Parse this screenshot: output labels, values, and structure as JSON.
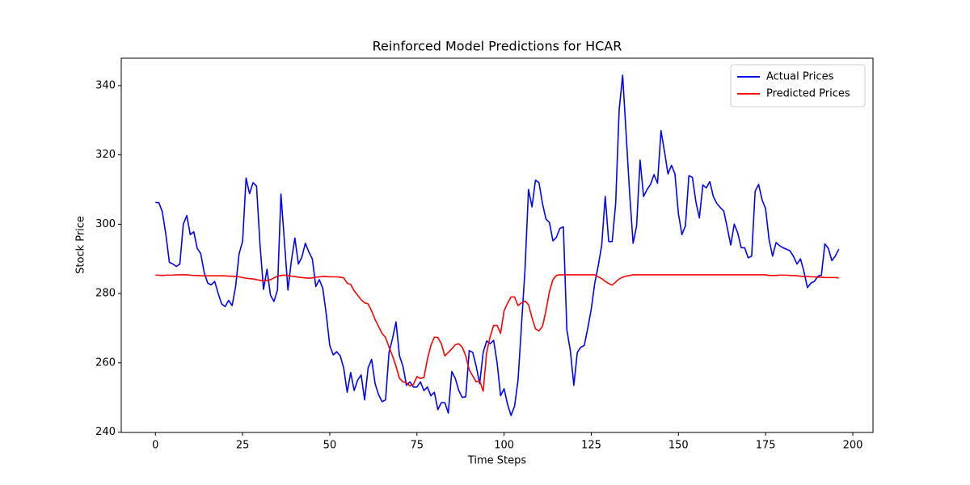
{
  "chart_data": {
    "type": "line",
    "title": "Reinforced Model Predictions for HCAR",
    "x_label": "Time Steps",
    "y_label": "Stock Price",
    "x": [
      0,
      1,
      2,
      3,
      4,
      5,
      6,
      7,
      8,
      9,
      10,
      11,
      12,
      13,
      14,
      15,
      16,
      17,
      18,
      19,
      20,
      21,
      22,
      23,
      24,
      25,
      26,
      27,
      28,
      29,
      30,
      31,
      32,
      33,
      34,
      35,
      36,
      37,
      38,
      39,
      40,
      41,
      42,
      43,
      44,
      45,
      46,
      47,
      48,
      49,
      50,
      51,
      52,
      53,
      54,
      55,
      56,
      57,
      58,
      59,
      60,
      61,
      62,
      63,
      64,
      65,
      66,
      67,
      68,
      69,
      70,
      71,
      72,
      73,
      74,
      75,
      76,
      77,
      78,
      79,
      80,
      81,
      82,
      83,
      84,
      85,
      86,
      87,
      88,
      89,
      90,
      91,
      92,
      93,
      94,
      95,
      96,
      97,
      98,
      99,
      100,
      101,
      102,
      103,
      104,
      105,
      106,
      107,
      108,
      109,
      110,
      111,
      112,
      113,
      114,
      115,
      116,
      117,
      118,
      119,
      120,
      121,
      122,
      123,
      124,
      125,
      126,
      127,
      128,
      129,
      130,
      131,
      132,
      133,
      134,
      135,
      136,
      137,
      138,
      139,
      140,
      141,
      142,
      143,
      144,
      145,
      146,
      147,
      148,
      149,
      150,
      151,
      152,
      153,
      154,
      155,
      156,
      157,
      158,
      159,
      160,
      161,
      162,
      163,
      164,
      165,
      166,
      167,
      168,
      169,
      170,
      171,
      172,
      173,
      174,
      175,
      176,
      177,
      178,
      179,
      180,
      181,
      182,
      183,
      184,
      185,
      186,
      187,
      188,
      189,
      190,
      191,
      192,
      193,
      194,
      195,
      196
    ],
    "series": [
      {
        "name": "Actual Prices",
        "color": "#0000ff",
        "values": [
          306.3,
          306.2,
          303.5,
          297,
          289,
          288.5,
          287.8,
          288.5,
          300,
          302.5,
          297,
          297.8,
          293,
          291.5,
          286,
          283,
          282.5,
          283.5,
          280,
          277,
          276.2,
          278,
          276.5,
          282,
          291.5,
          295,
          313.3,
          308.8,
          312,
          311,
          294,
          281.2,
          287,
          279.5,
          277.7,
          281,
          308.7,
          295,
          281,
          289.5,
          296,
          288.5,
          290.5,
          294.5,
          292,
          290,
          282,
          284,
          281.5,
          274,
          265,
          262.3,
          263.2,
          262,
          258.5,
          251.5,
          257.2,
          252,
          255,
          256.5,
          249.3,
          258.5,
          261,
          254,
          250.8,
          248.8,
          249.3,
          263,
          267,
          271.8,
          262,
          259,
          253.5,
          254.5,
          253,
          253,
          254.5,
          252,
          253,
          250.5,
          251.5,
          246.5,
          248.5,
          248.5,
          245.5,
          257.5,
          255.5,
          252,
          250,
          250.2,
          263.5,
          263,
          259,
          254,
          263,
          266.3,
          265.5,
          266.5,
          260,
          250.5,
          252.5,
          248,
          244.8,
          247.5,
          255,
          271,
          287,
          310,
          305,
          312.7,
          312,
          306,
          301.5,
          300.5,
          295.2,
          296.2,
          298.8,
          299.2,
          269.5,
          263.5,
          253.5,
          263,
          264.5,
          265,
          270,
          275.5,
          283,
          288,
          294,
          308,
          295,
          295,
          306,
          333,
          343,
          326,
          309,
          294.5,
          299.5,
          318.5,
          308,
          310,
          311.5,
          314.3,
          311.8,
          327,
          321,
          314.5,
          317,
          314.5,
          303,
          297,
          299.5,
          314,
          313.5,
          306.5,
          301.8,
          311.3,
          310.5,
          312.3,
          308,
          306,
          304.8,
          303.8,
          299,
          294,
          300,
          297.5,
          293.2,
          293.2,
          290.3,
          290.8,
          309.5,
          311.5,
          307,
          304.5,
          295.5,
          290.8,
          294.7,
          293.8,
          293.2,
          292.8,
          292.3,
          290.7,
          288.5,
          290,
          286.3,
          281.7,
          283,
          283.5,
          285,
          285.3,
          294.3,
          293,
          289.5,
          290.8,
          292.8
        ]
      },
      {
        "name": "Predicted Prices",
        "color": "#ff0000",
        "values": [
          285.3,
          285.3,
          285.2,
          285.3,
          285.3,
          285.3,
          285.4,
          285.4,
          285.4,
          285.4,
          285.3,
          285.2,
          285.2,
          285.1,
          285.1,
          285.1,
          285.1,
          285.1,
          285.1,
          285.1,
          285.1,
          285.0,
          285.0,
          284.9,
          284.8,
          284.6,
          284.4,
          284.3,
          284.2,
          284.0,
          283.8,
          283.7,
          283.7,
          284.0,
          284.5,
          285.0,
          285.2,
          285.3,
          285.2,
          285.0,
          284.9,
          284.7,
          284.6,
          284.5,
          284.4,
          284.5,
          284.7,
          284.8,
          284.9,
          284.9,
          284.8,
          284.8,
          284.8,
          284.7,
          284.5,
          283,
          282.6,
          280.8,
          279.5,
          278.2,
          277.3,
          277,
          275,
          272.5,
          270.5,
          268.5,
          267.3,
          264.5,
          262,
          259,
          255.5,
          254.5,
          254.2,
          253.3,
          253.8,
          256,
          255.5,
          255.7,
          261,
          265,
          267.4,
          267.3,
          265.5,
          262,
          263,
          264,
          265.2,
          265.5,
          264.5,
          262,
          258,
          256.2,
          254.5,
          254.8,
          251.8,
          263,
          267.5,
          270.8,
          270.8,
          268.5,
          275,
          277.2,
          279,
          279,
          276.5,
          277.3,
          277.8,
          276.8,
          273,
          269.8,
          269.2,
          270.5,
          275,
          280.5,
          284,
          285.2,
          285.4,
          285.4,
          285.4,
          285.4,
          285.4,
          285.4,
          285.4,
          285.4,
          285.4,
          285.4,
          285.4,
          284.8,
          284.3,
          283.5,
          282.9,
          282.4,
          283.3,
          284.2,
          284.7,
          285,
          285.2,
          285.4,
          285.4,
          285.4,
          285.4,
          285.4,
          285.4,
          285.4,
          285.4,
          285.4,
          285.4,
          285.4,
          285.4,
          285.4,
          285.4,
          285.4,
          285.4,
          285.4,
          285.4,
          285.4,
          285.4,
          285.4,
          285.4,
          285.4,
          285.4,
          285.4,
          285.4,
          285.4,
          285.4,
          285.4,
          285.4,
          285.4,
          285.4,
          285.4,
          285.4,
          285.4,
          285.4,
          285.4,
          285.4,
          285.4,
          285.2,
          285.2,
          285.2,
          285.3,
          285.3,
          285.3,
          285.2,
          285.2,
          285.1,
          285.0,
          284.9,
          284.9,
          284.8,
          284.8,
          284.7,
          284.7,
          284.6,
          284.6,
          284.6,
          284.6,
          284.5
        ]
      }
    ],
    "xlim": [
      -9.8,
      205.8
    ],
    "ylim": [
      239.9,
      347.9
    ],
    "xticks": [
      0,
      25,
      50,
      75,
      100,
      125,
      150,
      175,
      200
    ],
    "yticks": [
      240,
      260,
      280,
      300,
      320,
      340
    ],
    "legend": "upper right",
    "grid": false
  }
}
